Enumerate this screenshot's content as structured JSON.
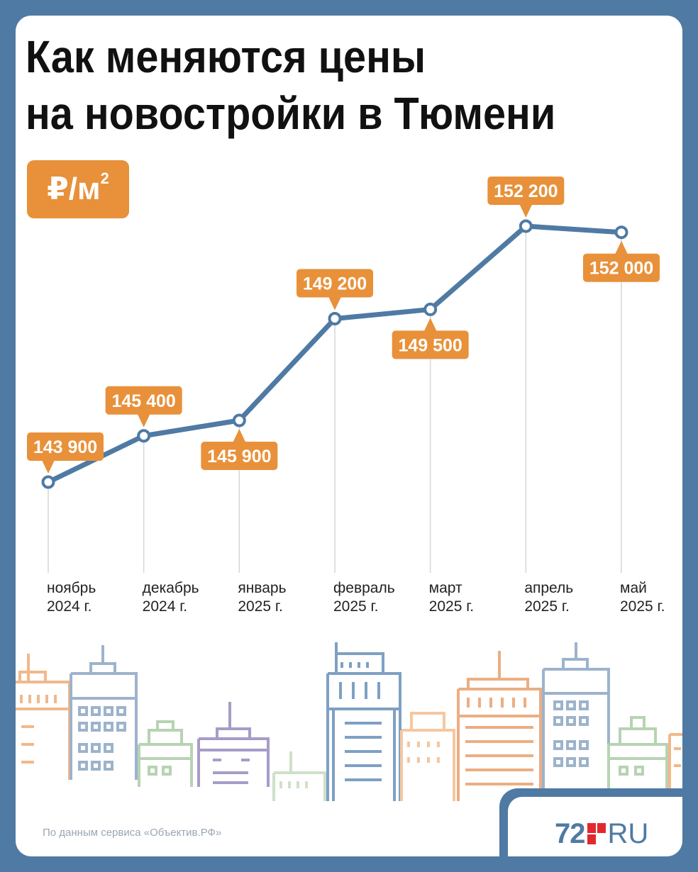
{
  "title": {
    "line1": "Как меняются цены",
    "line2": "на новостройки в Тюмени"
  },
  "unit": {
    "base": "₽/м",
    "exp": "2"
  },
  "colors": {
    "frame": "#4f7aa3",
    "line": "#4f7aa3",
    "label_bg": "#e8913a",
    "label_text": "#ffffff"
  },
  "chart_data": {
    "type": "line",
    "title": "Как меняются цены на новостройки в Тюмени",
    "ylabel": "₽/м²",
    "categories": [
      {
        "month": "ноябрь",
        "year": "2024 г."
      },
      {
        "month": "декабрь",
        "year": "2024 г."
      },
      {
        "month": "январь",
        "year": "2025 г."
      },
      {
        "month": "февраль",
        "year": "2025 г."
      },
      {
        "month": "март",
        "year": "2025 г."
      },
      {
        "month": "апрель",
        "year": "2025 г."
      },
      {
        "month": "май",
        "year": "2025 г."
      }
    ],
    "values": [
      143900,
      145400,
      145900,
      149200,
      149500,
      152200,
      152000
    ],
    "data_labels": [
      "143 900",
      "145 400",
      "145 900",
      "149 200",
      "149 500",
      "152 200",
      "152 000"
    ],
    "label_positions": [
      "above",
      "above",
      "below",
      "above",
      "below",
      "above",
      "below"
    ],
    "grid": false,
    "legend": "none"
  },
  "footer": {
    "source": "По данным сервиса «Объектив.РФ»",
    "logo_number": "72",
    "logo_domain": "RU"
  },
  "decor": {
    "skyline_icon": "city-skyline-illustration"
  }
}
